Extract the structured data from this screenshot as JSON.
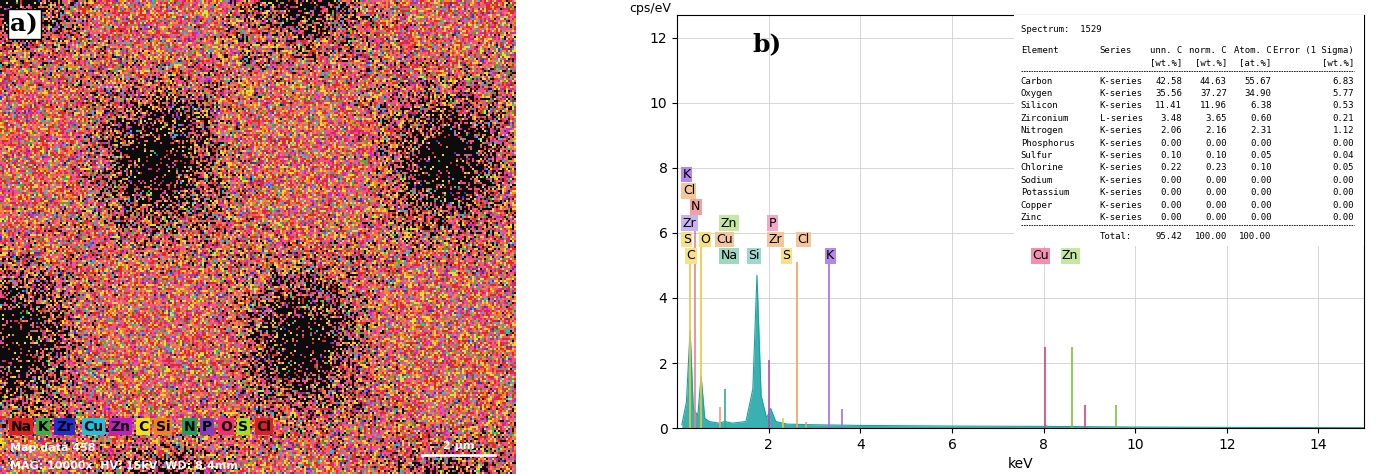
{
  "map": {
    "panel_label": "a)",
    "elements": [
      {
        "label": "Na",
        "color": "#e0201e"
      },
      {
        "label": "K",
        "color": "#3cb043"
      },
      {
        "label": "Zr",
        "color": "#2030d0"
      },
      {
        "label": "Cu",
        "color": "#20c0e0"
      },
      {
        "label": "Zn",
        "color": "#c020c0"
      },
      {
        "label": "C",
        "color": "#f0e020"
      },
      {
        "label": "Si",
        "color": "#f08020"
      },
      {
        "label": "N",
        "color": "#20a060"
      },
      {
        "label": "P",
        "color": "#8040c0"
      },
      {
        "label": "O",
        "color": "#f03070"
      },
      {
        "label": "S",
        "color": "#a0e020"
      },
      {
        "label": "Cl",
        "color": "#e02020"
      }
    ],
    "info_line_1": "Map data 458",
    "info_line_2": "MAG: 10000x  HV: 15kV  WD: 8.4mm",
    "scale_bar": "2 µm"
  },
  "chart_data": {
    "type": "area",
    "panel_label": "b)",
    "x_label": "keV",
    "y_label": "cps/eV",
    "color": "#17a3a3",
    "grid": true,
    "xlim": [
      0,
      15
    ],
    "xticks": [
      2,
      4,
      6,
      8,
      10,
      12,
      14
    ],
    "ylim": [
      0,
      12.7
    ],
    "yticks": [
      0,
      2,
      4,
      6,
      8,
      10,
      12
    ],
    "x": [
      0.1,
      0.2,
      0.28,
      0.35,
      0.39,
      0.45,
      0.52,
      0.6,
      0.7,
      0.9,
      1.04,
      1.2,
      1.5,
      1.65,
      1.74,
      1.83,
      1.95,
      2.04,
      2.15,
      2.4,
      3,
      4,
      6,
      8,
      8.04,
      8.1,
      9,
      10,
      12,
      15
    ],
    "values": [
      0.1,
      0.8,
      3.0,
      0.6,
      0.5,
      0.4,
      1.6,
      0.3,
      0.2,
      0.15,
      0.2,
      0.15,
      0.2,
      1.2,
      4.7,
      1.0,
      0.3,
      0.6,
      0.2,
      0.12,
      0.1,
      0.08,
      0.06,
      0.05,
      0.07,
      0.05,
      0.04,
      0.03,
      0.02,
      0.01
    ],
    "element_lines": [
      {
        "x": 0.277,
        "height": 5.1,
        "color": "#e8c840"
      },
      {
        "x": 0.392,
        "height": 6.6,
        "color": "#f08080"
      },
      {
        "x": 0.525,
        "height": 5.6,
        "color": "#e8c840"
      },
      {
        "x": 0.93,
        "height": 0.65,
        "color": "#f0a070"
      },
      {
        "x": 1.04,
        "height": 1.2,
        "color": "#30b080"
      },
      {
        "x": 2.01,
        "height": 2.1,
        "color": "#b050b0"
      },
      {
        "x": 2.31,
        "height": 0.3,
        "color": "#e8c840"
      },
      {
        "x": 2.62,
        "height": 5.1,
        "color": "#f0a060"
      },
      {
        "x": 2.82,
        "height": 0.2,
        "color": "#f0a060"
      },
      {
        "x": 3.31,
        "height": 5.1,
        "color": "#a070e0"
      },
      {
        "x": 3.59,
        "height": 0.6,
        "color": "#a070e0"
      },
      {
        "x": 8.04,
        "height": 2.5,
        "color": "#e0407a"
      },
      {
        "x": 8.9,
        "height": 0.7,
        "color": "#e0407a"
      },
      {
        "x": 8.63,
        "height": 2.5,
        "color": "#80c040"
      },
      {
        "x": 9.57,
        "height": 0.7,
        "color": "#80c040"
      }
    ],
    "peak_labels": [
      {
        "text": "K",
        "x": 0.12,
        "y": 7.6,
        "color": "#b388e6"
      },
      {
        "text": "Cl",
        "x": 0.12,
        "y": 7.1,
        "color": "#f5c69a"
      },
      {
        "text": "N",
        "x": 0.3,
        "y": 6.6,
        "color": "#f3a0a0"
      },
      {
        "text": "Zr",
        "x": 0.12,
        "y": 6.1,
        "color": "#c8b4f0"
      },
      {
        "text": "S",
        "x": 0.12,
        "y": 5.6,
        "color": "#f7e08a"
      },
      {
        "text": "O",
        "x": 0.5,
        "y": 5.6,
        "color": "#f5e07a"
      },
      {
        "text": "Cu",
        "x": 0.85,
        "y": 5.6,
        "color": "#f5c69a"
      },
      {
        "text": "C",
        "x": 0.2,
        "y": 5.1,
        "color": "#f7e08a"
      },
      {
        "text": "Zn",
        "x": 0.95,
        "y": 6.1,
        "color": "#c5e8a0"
      },
      {
        "text": "Na",
        "x": 0.95,
        "y": 5.1,
        "color": "#9ed8c0"
      },
      {
        "text": "Si",
        "x": 1.55,
        "y": 5.1,
        "color": "#9ed8d0"
      },
      {
        "text": "P",
        "x": 2.0,
        "y": 6.1,
        "color": "#f4a8c8"
      },
      {
        "text": "Zr",
        "x": 2.0,
        "y": 5.6,
        "color": "#f5c69a"
      },
      {
        "text": "S",
        "x": 2.3,
        "y": 5.1,
        "color": "#f7e08a"
      },
      {
        "text": "Cl",
        "x": 2.62,
        "y": 5.6,
        "color": "#f5c69a"
      },
      {
        "text": "K",
        "x": 3.25,
        "y": 5.1,
        "color": "#b388e6"
      },
      {
        "text": "Cu",
        "x": 7.75,
        "y": 5.1,
        "color": "#f48fb1"
      },
      {
        "text": "Zn",
        "x": 8.4,
        "y": 5.1,
        "color": "#c5e8a0"
      }
    ],
    "table": {
      "title": "Spectrum:  1529",
      "header": [
        [
          "Element",
          "Series",
          "unn. C",
          "norm. C",
          "Atom. C",
          "Error (1 Sigma)"
        ],
        [
          "",
          "",
          "[wt.%]",
          "[wt.%]",
          "[at.%]",
          "[wt.%]"
        ]
      ],
      "rows": [
        [
          "Carbon",
          "K-series",
          "42.58",
          "44.63",
          "55.67",
          "6.83"
        ],
        [
          "Oxygen",
          "K-series",
          "35.56",
          "37.27",
          "34.90",
          "5.77"
        ],
        [
          "Silicon",
          "K-series",
          "11.41",
          "11.96",
          "6.38",
          "0.53"
        ],
        [
          "Zirconium",
          "L-series",
          "3.48",
          "3.65",
          "0.60",
          "0.21"
        ],
        [
          "Nitrogen",
          "K-series",
          "2.06",
          "2.16",
          "2.31",
          "1.12"
        ],
        [
          "Phosphorus",
          "K-series",
          "0.00",
          "0.00",
          "0.00",
          "0.00"
        ],
        [
          "Sulfur",
          "K-series",
          "0.10",
          "0.10",
          "0.05",
          "0.04"
        ],
        [
          "Chlorine",
          "K-series",
          "0.22",
          "0.23",
          "0.10",
          "0.05"
        ],
        [
          "Sodium",
          "K-series",
          "0.00",
          "0.00",
          "0.00",
          "0.00"
        ],
        [
          "Potassium",
          "K-series",
          "0.00",
          "0.00",
          "0.00",
          "0.00"
        ],
        [
          "Copper",
          "K-series",
          "0.00",
          "0.00",
          "0.00",
          "0.00"
        ],
        [
          "Zinc",
          "K-series",
          "0.00",
          "0.00",
          "0.00",
          "0.00"
        ]
      ],
      "total": [
        "Total:",
        "95.42",
        "100.00",
        "100.00"
      ]
    }
  }
}
